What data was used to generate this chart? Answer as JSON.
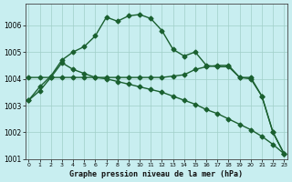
{
  "title": "Graphe pression niveau de la mer (hPa)",
  "hours": [
    0,
    1,
    2,
    3,
    4,
    5,
    6,
    7,
    8,
    9,
    10,
    11,
    12,
    13,
    14,
    15,
    16,
    17,
    18,
    19,
    20,
    21,
    22,
    23
  ],
  "series1": [
    1003.2,
    1003.7,
    1004.1,
    1004.7,
    1005.0,
    1005.2,
    1005.6,
    1006.3,
    1006.15,
    1006.35,
    1006.4,
    1006.25,
    1005.8,
    1005.1,
    1004.85,
    1005.0,
    1004.5,
    1004.45,
    1004.45,
    1004.05,
    1004.0,
    1003.35,
    1002.0,
    1001.2
  ],
  "series2": [
    1004.05,
    1004.05,
    1004.05,
    1004.05,
    1004.05,
    1004.05,
    1004.05,
    1004.05,
    1004.05,
    1004.05,
    1004.05,
    1004.05,
    1004.05,
    1004.1,
    1004.15,
    1004.35,
    1004.45,
    1004.5,
    1004.5,
    1004.05,
    1004.05,
    1003.35,
    1002.0,
    1001.2
  ],
  "series3": [
    1003.2,
    1003.55,
    1004.05,
    1004.6,
    1004.35,
    1004.2,
    1004.05,
    1004.0,
    1003.9,
    1003.8,
    1003.7,
    1003.6,
    1003.5,
    1003.35,
    1003.2,
    1003.05,
    1002.85,
    1002.7,
    1002.5,
    1002.3,
    1002.1,
    1001.85,
    1001.55,
    1001.2
  ],
  "ylim": [
    1001.0,
    1006.8
  ],
  "yticks": [
    1001,
    1002,
    1003,
    1004,
    1005,
    1006
  ],
  "xlim": [
    -0.3,
    23.3
  ],
  "bg_color": "#c8eef0",
  "grid_color": "#a0cfc8",
  "line_color": "#1a6030",
  "marker": "D",
  "marker_size": 2.5,
  "line_width": 1.0
}
